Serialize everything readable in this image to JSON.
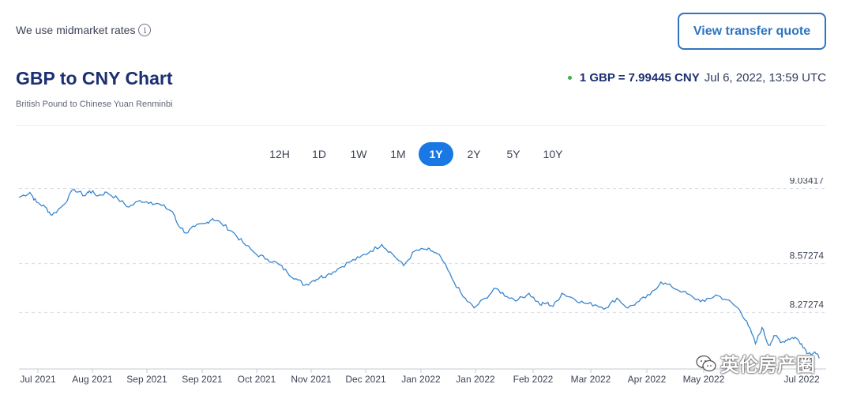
{
  "header": {
    "midmarket_text": "We use midmarket rates",
    "info_icon": "info-circle-icon",
    "quote_button": "View transfer quote"
  },
  "title": "GBP to CNY Chart",
  "subtitle": "British Pound to Chinese Yuan Renminbi",
  "rate": {
    "value": "1 GBP = 7.99445 CNY",
    "timestamp": "Jul 6, 2022, 13:59 UTC",
    "status_color": "#3fae52"
  },
  "tabs": [
    {
      "label": "12H",
      "active": false
    },
    {
      "label": "1D",
      "active": false
    },
    {
      "label": "1W",
      "active": false
    },
    {
      "label": "1M",
      "active": false
    },
    {
      "label": "1Y",
      "active": true
    },
    {
      "label": "2Y",
      "active": false
    },
    {
      "label": "5Y",
      "active": false
    },
    {
      "label": "10Y",
      "active": false
    }
  ],
  "colors": {
    "accent": "#1a78e5",
    "line": "#3a86d0",
    "title": "#1b2f72"
  },
  "watermark": {
    "text": "英伦房产圈",
    "icon": "wechat-icon"
  },
  "chart_data": {
    "type": "line",
    "title": "",
    "xlabel": "",
    "ylabel": "",
    "x_ticks": [
      "Jul 2021",
      "Aug 2021",
      "Sep 2021",
      "Sep 2021",
      "Oct 2021",
      "Nov 2021",
      "Dec 2021",
      "Jan 2022",
      "Jan 2022",
      "Feb 2022",
      "Mar 2022",
      "Apr 2022",
      "May 2022",
      "Jul 2022"
    ],
    "y_ticks": [
      {
        "value": 9.03417,
        "label": "9.03417"
      },
      {
        "value": 8.57274,
        "label": "8.57274"
      },
      {
        "value": 8.27274,
        "label": "8.27274"
      }
    ],
    "ylim": [
      7.93,
      9.1
    ],
    "xlim": [
      0,
      365
    ],
    "grid": "horizontal-dashed",
    "series": [
      {
        "x": [
          0,
          5,
          8,
          12,
          15,
          20,
          25,
          30,
          32,
          36,
          40,
          45,
          50,
          55,
          60,
          65,
          70,
          72,
          76,
          80,
          85,
          88,
          92,
          97,
          102,
          108,
          113,
          118,
          122,
          126,
          130,
          134,
          137,
          140,
          145,
          150,
          155,
          160,
          165,
          170,
          175,
          180,
          185,
          188,
          192,
          197,
          202,
          207,
          212,
          217,
          222,
          227,
          232,
          237,
          240,
          243,
          247,
          252,
          257,
          262,
          267,
          272,
          277,
          282,
          287,
          292,
          297,
          302,
          307,
          312,
          317,
          322,
          327,
          331,
          335,
          338,
          341,
          344,
          347,
          350,
          353,
          356,
          359,
          362,
          364
        ],
        "y": [
          8.98,
          9.01,
          8.95,
          8.92,
          8.87,
          8.93,
          9.03,
          8.99,
          9.02,
          8.99,
          9.01,
          8.97,
          8.92,
          8.96,
          8.95,
          8.93,
          8.89,
          8.82,
          8.76,
          8.8,
          8.82,
          8.85,
          8.82,
          8.77,
          8.7,
          8.63,
          8.6,
          8.57,
          8.52,
          8.48,
          8.44,
          8.47,
          8.49,
          8.5,
          8.54,
          8.58,
          8.61,
          8.65,
          8.69,
          8.63,
          8.56,
          8.65,
          8.66,
          8.65,
          8.61,
          8.48,
          8.37,
          8.3,
          8.36,
          8.42,
          8.37,
          8.35,
          8.39,
          8.32,
          8.33,
          8.31,
          8.39,
          8.36,
          8.33,
          8.32,
          8.3,
          8.36,
          8.3,
          8.34,
          8.38,
          8.46,
          8.43,
          8.4,
          8.36,
          8.34,
          8.38,
          8.35,
          8.3,
          8.22,
          8.08,
          8.18,
          8.07,
          8.13,
          8.09,
          8.11,
          8.12,
          8.08,
          8.02,
          8.03,
          7.99
        ]
      }
    ]
  }
}
